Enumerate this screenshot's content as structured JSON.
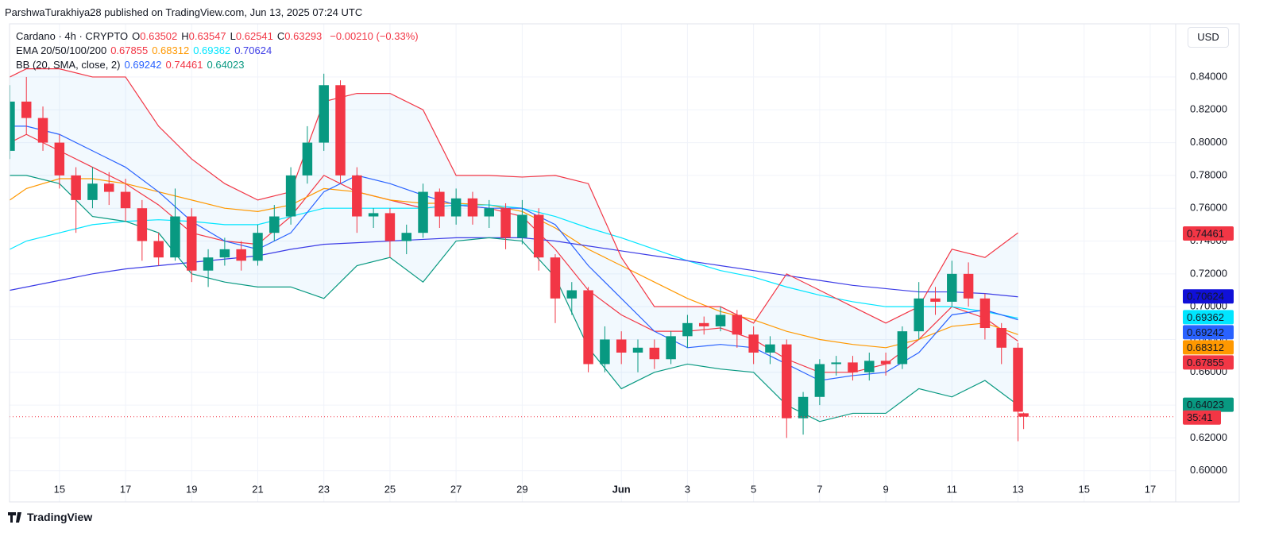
{
  "header": {
    "byline": "ParshwaTurakhiya28 published on TradingView.com, Jun 13, 2025 07:24 UTC",
    "currency": "USD",
    "brand": "TradingView"
  },
  "legend": {
    "symbol": "Cardano · 4h · CRYPTO",
    "ohlc": [
      {
        "key": "O",
        "value": 0.63502
      },
      {
        "key": "H",
        "value": 0.63547
      },
      {
        "key": "L",
        "value": 0.62541
      },
      {
        "key": "C",
        "value": 0.63293
      }
    ],
    "change": "−0.00210 (−0.33%)",
    "ema": {
      "label": "EMA 20/50/100/200",
      "values": [
        0.67855,
        0.68312,
        0.69362,
        0.70624
      ]
    },
    "bb": {
      "label": "BB (20, SMA, close, 2)",
      "values": [
        0.69242,
        0.74461,
        0.64023
      ]
    }
  },
  "chart_data": {
    "type": "candlestick",
    "up_color": "#089981",
    "down_color": "#f23645",
    "grid": true,
    "xlim": [
      13.49,
      48.77
    ],
    "ylim": [
      0.581,
      0.8724
    ],
    "xticks": [
      15,
      {
        "value": 17,
        "label": "17"
      },
      {
        "value": 19,
        "label": "19"
      },
      {
        "value": 21,
        "label": "21"
      },
      {
        "value": 23,
        "label": "23"
      },
      {
        "value": 25,
        "label": "25"
      },
      {
        "value": 27,
        "label": "27"
      },
      {
        "value": 29,
        "label": "29"
      },
      {
        "value": 32,
        "label": "Jun"
      },
      {
        "value": 34,
        "label": "3"
      },
      {
        "value": 36,
        "label": "5"
      },
      {
        "value": 38,
        "label": "7"
      },
      {
        "value": 40,
        "label": "9"
      },
      {
        "value": 42,
        "label": "11"
      },
      {
        "value": 44,
        "label": "13"
      },
      {
        "value": 46,
        "label": "15"
      },
      {
        "value": 48,
        "label": "17"
      }
    ],
    "yticks": [
      {
        "value": 0.6,
        "label": "0.60000"
      },
      {
        "value": 0.62,
        "label": "0.62000"
      },
      {
        "value": 0.64,
        "label": "0.64000"
      },
      {
        "value": 0.66,
        "label": "0.66000"
      },
      {
        "value": 0.68,
        "label": "0.68000"
      },
      {
        "value": 0.7,
        "label": "0.70000"
      },
      {
        "value": 0.72,
        "label": "0.72000"
      },
      {
        "value": 0.74,
        "label": "0.74000"
      },
      {
        "value": 0.76,
        "label": "0.76000"
      },
      {
        "value": 0.78,
        "label": "0.78000"
      },
      {
        "value": 0.8,
        "label": "0.80000"
      },
      {
        "value": 0.82,
        "label": "0.82000"
      },
      {
        "value": 0.84,
        "label": "0.84000"
      }
    ],
    "candles": {
      "x": [
        13.5,
        14,
        14.5,
        15,
        15.5,
        16,
        16.5,
        17,
        17.5,
        18,
        18.5,
        19,
        19.5,
        20,
        20.5,
        21,
        21.5,
        22,
        22.5,
        23,
        23.5,
        24,
        24.5,
        25,
        25.5,
        26,
        26.5,
        27,
        27.5,
        28,
        28.5,
        29,
        29.5,
        30,
        30.5,
        31,
        31.5,
        32,
        32.5,
        33,
        33.5,
        34,
        34.5,
        35,
        35.5,
        36,
        36.5,
        37,
        37.5,
        38,
        38.5,
        39,
        39.5,
        40,
        40.5,
        41,
        41.5,
        42,
        42.5,
        43,
        43.5,
        44,
        44.17
      ],
      "open": [
        0.795,
        0.825,
        0.815,
        0.8,
        0.78,
        0.765,
        0.775,
        0.77,
        0.76,
        0.74,
        0.73,
        0.755,
        0.722,
        0.73,
        0.735,
        0.728,
        0.745,
        0.755,
        0.78,
        0.8,
        0.835,
        0.78,
        0.755,
        0.757,
        0.74,
        0.745,
        0.77,
        0.755,
        0.766,
        0.755,
        0.76,
        0.742,
        0.756,
        0.73,
        0.705,
        0.71,
        0.665,
        0.68,
        0.672,
        0.675,
        0.668,
        0.682,
        0.69,
        0.688,
        0.695,
        0.683,
        0.672,
        0.677,
        0.632,
        0.645,
        0.665,
        0.666,
        0.66,
        0.667,
        0.665,
        0.685,
        0.705,
        0.703,
        0.72,
        0.705,
        0.687,
        0.675,
        0.63502
      ],
      "high": [
        0.835,
        0.84,
        0.822,
        0.805,
        0.785,
        0.785,
        0.782,
        0.778,
        0.765,
        0.745,
        0.772,
        0.76,
        0.735,
        0.742,
        0.74,
        0.75,
        0.762,
        0.785,
        0.81,
        0.842,
        0.838,
        0.785,
        0.76,
        0.76,
        0.75,
        0.775,
        0.772,
        0.772,
        0.77,
        0.765,
        0.763,
        0.765,
        0.76,
        0.732,
        0.715,
        0.712,
        0.688,
        0.685,
        0.68,
        0.68,
        0.685,
        0.695,
        0.694,
        0.7,
        0.698,
        0.688,
        0.682,
        0.68,
        0.648,
        0.668,
        0.67,
        0.67,
        0.672,
        0.672,
        0.688,
        0.715,
        0.712,
        0.728,
        0.727,
        0.708,
        0.69,
        0.678,
        0.63547
      ],
      "low": [
        0.79,
        0.805,
        0.795,
        0.772,
        0.745,
        0.76,
        0.762,
        0.752,
        0.728,
        0.725,
        0.728,
        0.715,
        0.712,
        0.725,
        0.722,
        0.725,
        0.74,
        0.75,
        0.775,
        0.795,
        0.775,
        0.745,
        0.748,
        0.73,
        0.732,
        0.742,
        0.748,
        0.75,
        0.75,
        0.748,
        0.735,
        0.738,
        0.722,
        0.69,
        0.695,
        0.66,
        0.66,
        0.665,
        0.66,
        0.662,
        0.665,
        0.675,
        0.683,
        0.685,
        0.675,
        0.665,
        0.665,
        0.62,
        0.622,
        0.64,
        0.658,
        0.655,
        0.655,
        0.658,
        0.662,
        0.68,
        0.695,
        0.7,
        0.7,
        0.68,
        0.665,
        0.618,
        0.62541
      ],
      "close": [
        0.825,
        0.815,
        0.8,
        0.78,
        0.765,
        0.775,
        0.77,
        0.76,
        0.74,
        0.73,
        0.755,
        0.722,
        0.73,
        0.735,
        0.728,
        0.745,
        0.755,
        0.78,
        0.8,
        0.835,
        0.78,
        0.755,
        0.757,
        0.74,
        0.745,
        0.77,
        0.755,
        0.766,
        0.755,
        0.76,
        0.742,
        0.756,
        0.73,
        0.705,
        0.71,
        0.665,
        0.68,
        0.672,
        0.675,
        0.668,
        0.682,
        0.69,
        0.688,
        0.695,
        0.683,
        0.672,
        0.677,
        0.632,
        0.645,
        0.665,
        0.666,
        0.66,
        0.667,
        0.665,
        0.685,
        0.705,
        0.703,
        0.72,
        0.705,
        0.687,
        0.675,
        0.636,
        0.63293
      ]
    },
    "x": [
      13.5,
      14,
      15,
      16,
      17,
      18,
      19,
      20,
      21,
      22,
      23,
      24,
      25,
      26,
      27,
      28,
      29,
      30,
      31,
      32,
      33,
      34,
      35,
      36,
      37,
      38,
      39,
      40,
      41,
      42,
      43,
      44
    ],
    "series": [
      {
        "color": "#f23645",
        "values": [
          0.8,
          0.805,
          0.795,
          0.785,
          0.775,
          0.762,
          0.745,
          0.74,
          0.738,
          0.755,
          0.78,
          0.77,
          0.765,
          0.76,
          0.762,
          0.76,
          0.755,
          0.735,
          0.71,
          0.695,
          0.685,
          0.685,
          0.687,
          0.68,
          0.668,
          0.66,
          0.66,
          0.665,
          0.68,
          0.7,
          0.693,
          0.679
        ]
      },
      {
        "color": "#ff9800",
        "values": [
          0.765,
          0.772,
          0.778,
          0.778,
          0.775,
          0.77,
          0.765,
          0.76,
          0.758,
          0.762,
          0.772,
          0.77,
          0.765,
          0.763,
          0.763,
          0.762,
          0.758,
          0.748,
          0.735,
          0.725,
          0.715,
          0.705,
          0.697,
          0.692,
          0.685,
          0.68,
          0.677,
          0.675,
          0.68,
          0.688,
          0.69,
          0.683
        ]
      },
      {
        "color": "#00e5ff",
        "values": [
          0.735,
          0.74,
          0.745,
          0.75,
          0.752,
          0.753,
          0.752,
          0.75,
          0.75,
          0.755,
          0.76,
          0.76,
          0.76,
          0.76,
          0.762,
          0.762,
          0.76,
          0.755,
          0.748,
          0.742,
          0.735,
          0.728,
          0.722,
          0.718,
          0.712,
          0.707,
          0.703,
          0.7,
          0.7,
          0.7,
          0.697,
          0.693
        ]
      },
      {
        "color": "#3c3ce6",
        "values": [
          0.71,
          0.712,
          0.716,
          0.72,
          0.723,
          0.725,
          0.727,
          0.729,
          0.731,
          0.735,
          0.738,
          0.739,
          0.74,
          0.741,
          0.742,
          0.742,
          0.742,
          0.74,
          0.737,
          0.734,
          0.731,
          0.728,
          0.725,
          0.722,
          0.719,
          0.716,
          0.713,
          0.711,
          0.709,
          0.709,
          0.708,
          0.706
        ]
      },
      {
        "color": "#2962ff",
        "values": [
          0.81,
          0.81,
          0.805,
          0.795,
          0.785,
          0.77,
          0.752,
          0.74,
          0.735,
          0.745,
          0.77,
          0.78,
          0.775,
          0.768,
          0.762,
          0.76,
          0.76,
          0.75,
          0.725,
          0.705,
          0.685,
          0.675,
          0.677,
          0.675,
          0.665,
          0.655,
          0.658,
          0.66,
          0.672,
          0.695,
          0.698,
          0.692
        ]
      },
      {
        "color": "#f23645",
        "values": [
          0.84,
          0.845,
          0.845,
          0.84,
          0.84,
          0.81,
          0.79,
          0.775,
          0.765,
          0.77,
          0.825,
          0.83,
          0.83,
          0.82,
          0.78,
          0.78,
          0.779,
          0.78,
          0.775,
          0.73,
          0.7,
          0.7,
          0.7,
          0.69,
          0.72,
          0.71,
          0.7,
          0.69,
          0.7,
          0.735,
          0.73,
          0.745
        ]
      },
      {
        "color": "#089981",
        "values": [
          0.78,
          0.78,
          0.775,
          0.755,
          0.752,
          0.745,
          0.72,
          0.715,
          0.712,
          0.712,
          0.705,
          0.725,
          0.73,
          0.715,
          0.74,
          0.742,
          0.74,
          0.718,
          0.675,
          0.65,
          0.66,
          0.665,
          0.662,
          0.66,
          0.64,
          0.63,
          0.635,
          0.635,
          0.65,
          0.645,
          0.655,
          0.64
        ]
      }
    ],
    "band_fill": "#2196f3",
    "price_labels": [
      {
        "value": 0.74461,
        "color": "#f23645"
      },
      {
        "value": 0.70624,
        "color": "#1010d8"
      },
      {
        "value": 0.69362,
        "color": "#00e5ff"
      },
      {
        "value": 0.69242,
        "color": "#2962ff"
      },
      {
        "value": 0.68312,
        "color": "#ff9800"
      },
      {
        "value": 0.67855,
        "color": "#f23645"
      },
      {
        "value": 0.64023,
        "color": "#089981"
      }
    ],
    "countdown": {
      "value": 0.63293,
      "label": "35:41"
    }
  }
}
